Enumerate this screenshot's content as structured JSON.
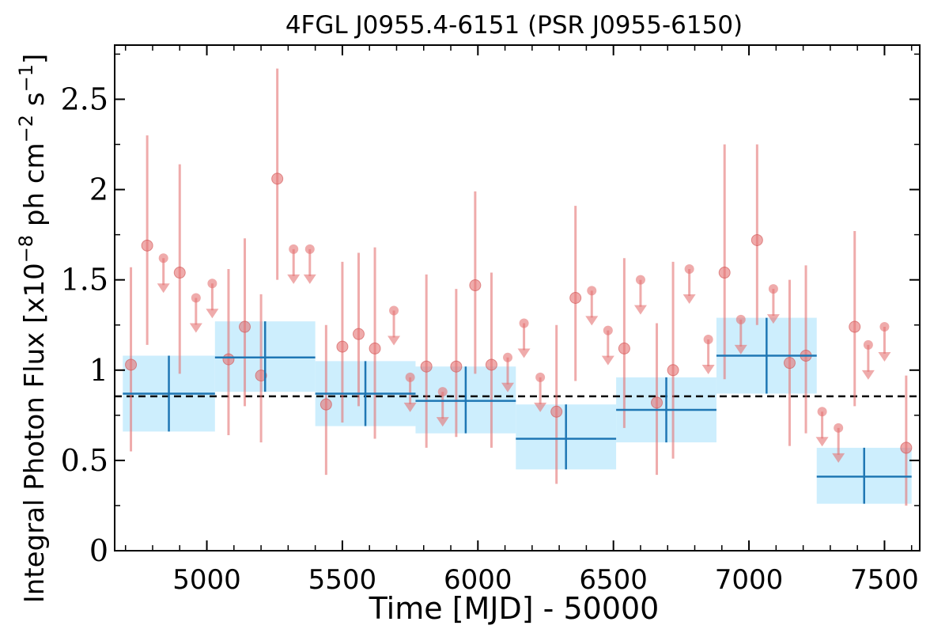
{
  "chart_data": {
    "type": "scatter",
    "title": "4FGL J0955.4-6151 (PSR J0955-6150)",
    "xlabel": "Time [MJD] - 50000",
    "ylabel_parts": {
      "prefix": "Integral Photon Flux [x10",
      "exp1": "−8",
      "mid": " ph cm",
      "exp2": "−2",
      "mid2": " s",
      "exp3": "−1",
      "suffix": "]"
    },
    "xlim": [
      4660,
      7630
    ],
    "ylim": [
      0,
      2.8
    ],
    "xticks": [
      5000,
      5500,
      6000,
      6500,
      7000,
      7500
    ],
    "yticks": [
      0,
      0.5,
      1,
      1.5,
      2,
      2.5
    ],
    "ytick_labels": [
      "0",
      "0.5",
      "1",
      "1.5",
      "2",
      "2.5"
    ],
    "mean_flux": 0.855,
    "colors": {
      "yearly_band": "#cdeefd",
      "yearly_line": "#1f77b4",
      "monthly": "#e57373",
      "mean_line": "#000000"
    },
    "yearly_bins": [
      {
        "x_lo": 4690,
        "x_hi": 5030,
        "y": 0.87,
        "y_lo": 0.66,
        "y_hi": 1.08
      },
      {
        "x_lo": 5030,
        "x_hi": 5400,
        "y": 1.07,
        "y_lo": 0.88,
        "y_hi": 1.27
      },
      {
        "x_lo": 5400,
        "x_hi": 5770,
        "y": 0.87,
        "y_lo": 0.69,
        "y_hi": 1.05
      },
      {
        "x_lo": 5770,
        "x_hi": 6140,
        "y": 0.83,
        "y_lo": 0.65,
        "y_hi": 1.02
      },
      {
        "x_lo": 6140,
        "x_hi": 6510,
        "y": 0.62,
        "y_lo": 0.45,
        "y_hi": 0.81
      },
      {
        "x_lo": 6510,
        "x_hi": 6880,
        "y": 0.78,
        "y_lo": 0.6,
        "y_hi": 0.96
      },
      {
        "x_lo": 6880,
        "x_hi": 7250,
        "y": 1.08,
        "y_lo": 0.87,
        "y_hi": 1.29
      },
      {
        "x_lo": 7250,
        "x_hi": 7600,
        "y": 0.41,
        "y_lo": 0.26,
        "y_hi": 0.57
      }
    ],
    "monthly_points": [
      {
        "x": 4720,
        "y": 1.03,
        "y_lo": 0.55,
        "y_hi": 1.57
      },
      {
        "x": 4780,
        "y": 1.69,
        "y_lo": 1.14,
        "y_hi": 2.3
      },
      {
        "x": 4900,
        "y": 1.54,
        "y_lo": 0.98,
        "y_hi": 2.14
      },
      {
        "x": 5080,
        "y": 1.06,
        "y_lo": 0.64,
        "y_hi": 1.56
      },
      {
        "x": 5140,
        "y": 1.24,
        "y_lo": 0.8,
        "y_hi": 1.73
      },
      {
        "x": 5200,
        "y": 0.97,
        "y_lo": 0.6,
        "y_hi": 1.42
      },
      {
        "x": 5260,
        "y": 2.06,
        "y_lo": 1.5,
        "y_hi": 2.67
      },
      {
        "x": 5440,
        "y": 0.81,
        "y_lo": 0.42,
        "y_hi": 1.25
      },
      {
        "x": 5500,
        "y": 1.13,
        "y_lo": 0.71,
        "y_hi": 1.6
      },
      {
        "x": 5560,
        "y": 1.2,
        "y_lo": 0.8,
        "y_hi": 1.65
      },
      {
        "x": 5620,
        "y": 1.12,
        "y_lo": 0.62,
        "y_hi": 1.68
      },
      {
        "x": 5810,
        "y": 1.02,
        "y_lo": 0.57,
        "y_hi": 1.53
      },
      {
        "x": 5920,
        "y": 1.02,
        "y_lo": 0.63,
        "y_hi": 1.45
      },
      {
        "x": 5990,
        "y": 1.47,
        "y_lo": 0.98,
        "y_hi": 1.99
      },
      {
        "x": 6050,
        "y": 1.03,
        "y_lo": 0.57,
        "y_hi": 1.54
      },
      {
        "x": 6290,
        "y": 0.77,
        "y_lo": 0.37,
        "y_hi": 1.25
      },
      {
        "x": 6360,
        "y": 1.4,
        "y_lo": 0.94,
        "y_hi": 1.91
      },
      {
        "x": 6540,
        "y": 1.12,
        "y_lo": 0.68,
        "y_hi": 1.62
      },
      {
        "x": 6660,
        "y": 0.82,
        "y_lo": 0.42,
        "y_hi": 1.26
      },
      {
        "x": 6720,
        "y": 1.0,
        "y_lo": 0.51,
        "y_hi": 1.6
      },
      {
        "x": 6910,
        "y": 1.54,
        "y_lo": 0.95,
        "y_hi": 2.25
      },
      {
        "x": 7030,
        "y": 1.72,
        "y_lo": 1.25,
        "y_hi": 2.25
      },
      {
        "x": 7150,
        "y": 1.04,
        "y_lo": 0.58,
        "y_hi": 1.5
      },
      {
        "x": 7210,
        "y": 1.08,
        "y_lo": 0.65,
        "y_hi": 1.58
      },
      {
        "x": 7390,
        "y": 1.24,
        "y_lo": 0.8,
        "y_hi": 1.77
      },
      {
        "x": 7580,
        "y": 0.57,
        "y_lo": 0.25,
        "y_hi": 0.97
      }
    ],
    "monthly_upper_limits": [
      {
        "x": 4840,
        "y": 1.62
      },
      {
        "x": 4960,
        "y": 1.4
      },
      {
        "x": 5020,
        "y": 1.48
      },
      {
        "x": 5320,
        "y": 1.67
      },
      {
        "x": 5380,
        "y": 1.67
      },
      {
        "x": 5690,
        "y": 1.33
      },
      {
        "x": 5750,
        "y": 0.96
      },
      {
        "x": 5870,
        "y": 0.88
      },
      {
        "x": 6110,
        "y": 1.07
      },
      {
        "x": 6170,
        "y": 1.26
      },
      {
        "x": 6230,
        "y": 0.96
      },
      {
        "x": 6420,
        "y": 1.44
      },
      {
        "x": 6480,
        "y": 1.22
      },
      {
        "x": 6600,
        "y": 1.5
      },
      {
        "x": 6780,
        "y": 1.56
      },
      {
        "x": 6850,
        "y": 1.17
      },
      {
        "x": 6970,
        "y": 1.28
      },
      {
        "x": 7090,
        "y": 1.45
      },
      {
        "x": 7270,
        "y": 0.77
      },
      {
        "x": 7330,
        "y": 0.68
      },
      {
        "x": 7440,
        "y": 1.14
      },
      {
        "x": 7500,
        "y": 1.24
      }
    ]
  }
}
